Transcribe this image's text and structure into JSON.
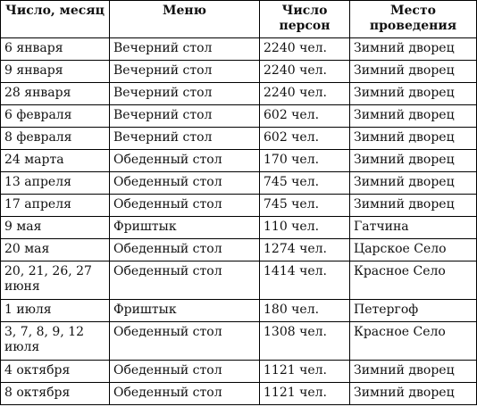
{
  "headers": {
    "date": "Число, месяц",
    "menu": "Меню",
    "persons": "Число персон",
    "place": "Место проведения"
  },
  "rows": [
    {
      "date": "6 января",
      "menu": "Вечерний стол",
      "persons": "2240 чел.",
      "place": "Зимний дворец"
    },
    {
      "date": "9 января",
      "menu": "Вечерний стол",
      "persons": "2240 чел.",
      "place": "Зимний дворец"
    },
    {
      "date": "28 января",
      "menu": "Вечерний стол",
      "persons": "2240 чел.",
      "place": "Зимний дворец"
    },
    {
      "date": "6 февраля",
      "menu": "Вечерний стол",
      "persons": "602 чел.",
      "place": "Зимний дворец"
    },
    {
      "date": "8 февраля",
      "menu": "Вечерний стол",
      "persons": "602 чел.",
      "place": "Зимний дворец"
    },
    {
      "date": "24 марта",
      "menu": "Обеденный стол",
      "persons": "170 чел.",
      "place": "Зимний дворец"
    },
    {
      "date": "13 апреля",
      "menu": "Обеденный стол",
      "persons": "745 чел.",
      "place": "Зимний дворец"
    },
    {
      "date": "17 апреля",
      "menu": "Обеденный стол",
      "persons": "745 чел.",
      "place": "Зимний дворец"
    },
    {
      "date": "9 мая",
      "menu": "Фриштык",
      "persons": "110 чел.",
      "place": "Гатчина"
    },
    {
      "date": "20 мая",
      "menu": "Обеденный стол",
      "persons": "1274 чел.",
      "place": "Царское Село"
    },
    {
      "date": "20, 21, 26, 27 июня",
      "menu": "Обеденный стол",
      "persons": "1414 чел.",
      "place": "Красное Село"
    },
    {
      "date": "1 июля",
      "menu": "Фриштык",
      "persons": "180 чел.",
      "place": "Петергоф"
    },
    {
      "date": "3, 7, 8, 9, 12 июля",
      "menu": "Обеденный стол",
      "persons": "1308 чел.",
      "place": "Красное Село"
    },
    {
      "date": "4 октября",
      "menu": "Обеденный стол",
      "persons": "1121 чел.",
      "place": "Зимний дворец"
    },
    {
      "date": "8 октября",
      "menu": "Обеденный стол",
      "persons": "1121 чел.",
      "place": "Зимний дворец"
    }
  ]
}
